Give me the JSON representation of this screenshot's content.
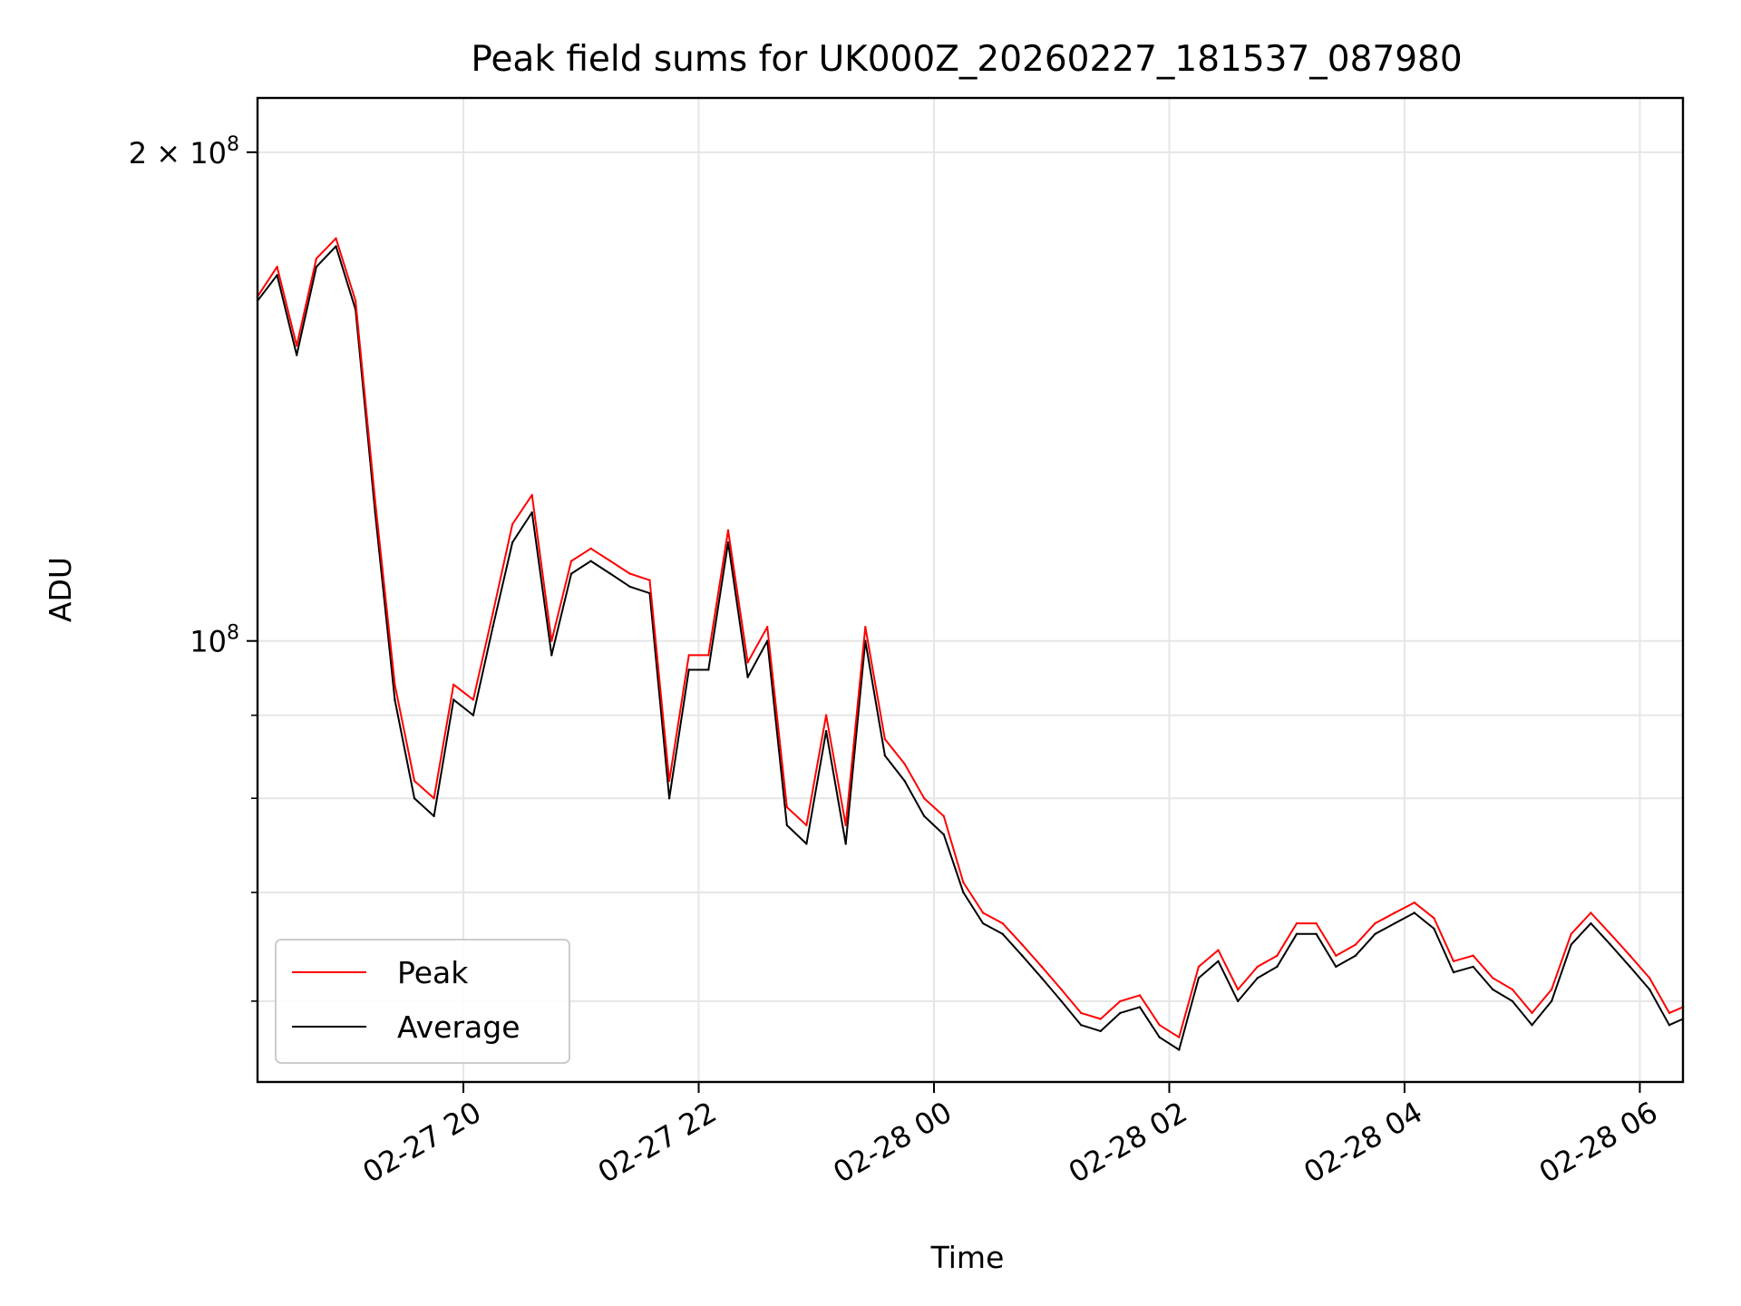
{
  "chart_data": {
    "type": "line",
    "title": "Peak field sums for UK000Z_20260227_181537_087980",
    "xlabel": "Time",
    "ylabel": "ADU",
    "yscale": "log",
    "ylim": [
      53500000,
      216000000
    ],
    "xlim": [
      "2026-02-27 18:15",
      "2026-02-28 06:22"
    ],
    "grid": true,
    "legend_position": "lower-left",
    "x_ticks": [
      {
        "t": "2026-02-27 20:00",
        "label": "02-27 20"
      },
      {
        "t": "2026-02-27 22:00",
        "label": "02-27 22"
      },
      {
        "t": "2026-02-28 00:00",
        "label": "02-28 00"
      },
      {
        "t": "2026-02-28 02:00",
        "label": "02-28 02"
      },
      {
        "t": "2026-02-28 04:00",
        "label": "02-28 04"
      },
      {
        "t": "2026-02-28 06:00",
        "label": "02-28 06"
      }
    ],
    "y_major_ticks": [
      {
        "value": 100000000,
        "base": "10",
        "exp": "8",
        "coef": ""
      },
      {
        "value": 200000000,
        "base": "10",
        "exp": "8",
        "coef": "2 × "
      }
    ],
    "y_minor_ticks": [
      60000000,
      70000000,
      80000000,
      90000000
    ],
    "series": [
      {
        "name": "Average",
        "color": "#000000",
        "points": [
          [
            "2026-02-27 18:15",
            162000000
          ],
          [
            "2026-02-27 18:25",
            168000000
          ],
          [
            "2026-02-27 18:35",
            150000000
          ],
          [
            "2026-02-27 18:45",
            170000000
          ],
          [
            "2026-02-27 18:55",
            175000000
          ],
          [
            "2026-02-27 19:05",
            160000000
          ],
          [
            "2026-02-27 19:15",
            120000000
          ],
          [
            "2026-02-27 19:25",
            92000000
          ],
          [
            "2026-02-27 19:35",
            80000000
          ],
          [
            "2026-02-27 19:45",
            78000000
          ],
          [
            "2026-02-27 19:55",
            92000000
          ],
          [
            "2026-02-27 20:05",
            90000000
          ],
          [
            "2026-02-27 20:15",
            102000000
          ],
          [
            "2026-02-27 20:25",
            115000000
          ],
          [
            "2026-02-27 20:35",
            120000000
          ],
          [
            "2026-02-27 20:45",
            98000000
          ],
          [
            "2026-02-27 20:55",
            110000000
          ],
          [
            "2026-02-27 21:05",
            112000000
          ],
          [
            "2026-02-27 21:15",
            110000000
          ],
          [
            "2026-02-27 21:25",
            108000000
          ],
          [
            "2026-02-27 21:35",
            107000000
          ],
          [
            "2026-02-27 21:45",
            80000000
          ],
          [
            "2026-02-27 21:55",
            96000000
          ],
          [
            "2026-02-27 22:05",
            96000000
          ],
          [
            "2026-02-27 22:15",
            115000000
          ],
          [
            "2026-02-27 22:25",
            95000000
          ],
          [
            "2026-02-27 22:35",
            100000000
          ],
          [
            "2026-02-27 22:45",
            77000000
          ],
          [
            "2026-02-27 22:55",
            75000000
          ],
          [
            "2026-02-27 23:05",
            88000000
          ],
          [
            "2026-02-27 23:15",
            75000000
          ],
          [
            "2026-02-27 23:25",
            100000000
          ],
          [
            "2026-02-27 23:35",
            85000000
          ],
          [
            "2026-02-27 23:45",
            82000000
          ],
          [
            "2026-02-27 23:55",
            78000000
          ],
          [
            "2026-02-28 00:05",
            76000000
          ],
          [
            "2026-02-28 00:15",
            70000000
          ],
          [
            "2026-02-28 00:25",
            67000000
          ],
          [
            "2026-02-28 00:35",
            66000000
          ],
          [
            "2026-02-28 00:45",
            64000000
          ],
          [
            "2026-02-28 00:55",
            62000000
          ],
          [
            "2026-02-28 01:05",
            60000000
          ],
          [
            "2026-02-28 01:15",
            58000000
          ],
          [
            "2026-02-28 01:25",
            57500000
          ],
          [
            "2026-02-28 01:35",
            59000000
          ],
          [
            "2026-02-28 01:45",
            59500000
          ],
          [
            "2026-02-28 01:55",
            57000000
          ],
          [
            "2026-02-28 02:05",
            56000000
          ],
          [
            "2026-02-28 02:15",
            62000000
          ],
          [
            "2026-02-28 02:25",
            63500000
          ],
          [
            "2026-02-28 02:35",
            60000000
          ],
          [
            "2026-02-28 02:45",
            62000000
          ],
          [
            "2026-02-28 02:55",
            63000000
          ],
          [
            "2026-02-28 03:05",
            66000000
          ],
          [
            "2026-02-28 03:15",
            66000000
          ],
          [
            "2026-02-28 03:25",
            63000000
          ],
          [
            "2026-02-28 03:35",
            64000000
          ],
          [
            "2026-02-28 03:45",
            66000000
          ],
          [
            "2026-02-28 03:55",
            67000000
          ],
          [
            "2026-02-28 04:05",
            68000000
          ],
          [
            "2026-02-28 04:15",
            66500000
          ],
          [
            "2026-02-28 04:25",
            62500000
          ],
          [
            "2026-02-28 04:35",
            63000000
          ],
          [
            "2026-02-28 04:45",
            61000000
          ],
          [
            "2026-02-28 04:55",
            60000000
          ],
          [
            "2026-02-28 05:05",
            58000000
          ],
          [
            "2026-02-28 05:15",
            60000000
          ],
          [
            "2026-02-28 05:25",
            65000000
          ],
          [
            "2026-02-28 05:35",
            67000000
          ],
          [
            "2026-02-28 05:45",
            65000000
          ],
          [
            "2026-02-28 05:55",
            63000000
          ],
          [
            "2026-02-28 06:05",
            61000000
          ],
          [
            "2026-02-28 06:15",
            58000000
          ],
          [
            "2026-02-28 06:22",
            58500000
          ]
        ]
      },
      {
        "name": "Peak",
        "color": "#ff0000",
        "points": [
          [
            "2026-02-27 18:15",
            163000000
          ],
          [
            "2026-02-27 18:25",
            170000000
          ],
          [
            "2026-02-27 18:35",
            152000000
          ],
          [
            "2026-02-27 18:45",
            172000000
          ],
          [
            "2026-02-27 18:55",
            177000000
          ],
          [
            "2026-02-27 19:05",
            162000000
          ],
          [
            "2026-02-27 19:15",
            122000000
          ],
          [
            "2026-02-27 19:25",
            94000000
          ],
          [
            "2026-02-27 19:35",
            82000000
          ],
          [
            "2026-02-27 19:45",
            80000000
          ],
          [
            "2026-02-27 19:55",
            94000000
          ],
          [
            "2026-02-27 20:05",
            92000000
          ],
          [
            "2026-02-27 20:15",
            104000000
          ],
          [
            "2026-02-27 20:25",
            118000000
          ],
          [
            "2026-02-27 20:35",
            123000000
          ],
          [
            "2026-02-27 20:45",
            100000000
          ],
          [
            "2026-02-27 20:55",
            112000000
          ],
          [
            "2026-02-27 21:05",
            114000000
          ],
          [
            "2026-02-27 21:15",
            112000000
          ],
          [
            "2026-02-27 21:25",
            110000000
          ],
          [
            "2026-02-27 21:35",
            109000000
          ],
          [
            "2026-02-27 21:45",
            82000000
          ],
          [
            "2026-02-27 21:55",
            98000000
          ],
          [
            "2026-02-27 22:05",
            98000000
          ],
          [
            "2026-02-27 22:15",
            117000000
          ],
          [
            "2026-02-27 22:25",
            97000000
          ],
          [
            "2026-02-27 22:35",
            102000000
          ],
          [
            "2026-02-27 22:45",
            79000000
          ],
          [
            "2026-02-27 22:55",
            77000000
          ],
          [
            "2026-02-27 23:05",
            90000000
          ],
          [
            "2026-02-27 23:15",
            77000000
          ],
          [
            "2026-02-27 23:25",
            102000000
          ],
          [
            "2026-02-27 23:35",
            87000000
          ],
          [
            "2026-02-27 23:45",
            84000000
          ],
          [
            "2026-02-27 23:55",
            80000000
          ],
          [
            "2026-02-28 00:05",
            78000000
          ],
          [
            "2026-02-28 00:15",
            71000000
          ],
          [
            "2026-02-28 00:25",
            68000000
          ],
          [
            "2026-02-28 00:35",
            67000000
          ],
          [
            "2026-02-28 00:45",
            65000000
          ],
          [
            "2026-02-28 00:55",
            63000000
          ],
          [
            "2026-02-28 01:05",
            61000000
          ],
          [
            "2026-02-28 01:15",
            59000000
          ],
          [
            "2026-02-28 01:25",
            58500000
          ],
          [
            "2026-02-28 01:35",
            60000000
          ],
          [
            "2026-02-28 01:45",
            60500000
          ],
          [
            "2026-02-28 01:55",
            58000000
          ],
          [
            "2026-02-28 02:05",
            57000000
          ],
          [
            "2026-02-28 02:15",
            63000000
          ],
          [
            "2026-02-28 02:25",
            64500000
          ],
          [
            "2026-02-28 02:35",
            61000000
          ],
          [
            "2026-02-28 02:45",
            63000000
          ],
          [
            "2026-02-28 02:55",
            64000000
          ],
          [
            "2026-02-28 03:05",
            67000000
          ],
          [
            "2026-02-28 03:15",
            67000000
          ],
          [
            "2026-02-28 03:25",
            64000000
          ],
          [
            "2026-02-28 03:35",
            65000000
          ],
          [
            "2026-02-28 03:45",
            67000000
          ],
          [
            "2026-02-28 03:55",
            68000000
          ],
          [
            "2026-02-28 04:05",
            69000000
          ],
          [
            "2026-02-28 04:15",
            67500000
          ],
          [
            "2026-02-28 04:25",
            63500000
          ],
          [
            "2026-02-28 04:35",
            64000000
          ],
          [
            "2026-02-28 04:45",
            62000000
          ],
          [
            "2026-02-28 04:55",
            61000000
          ],
          [
            "2026-02-28 05:05",
            59000000
          ],
          [
            "2026-02-28 05:15",
            61000000
          ],
          [
            "2026-02-28 05:25",
            66000000
          ],
          [
            "2026-02-28 05:35",
            68000000
          ],
          [
            "2026-02-28 05:45",
            66000000
          ],
          [
            "2026-02-28 05:55",
            64000000
          ],
          [
            "2026-02-28 06:05",
            62000000
          ],
          [
            "2026-02-28 06:15",
            59000000
          ],
          [
            "2026-02-28 06:22",
            59500000
          ]
        ]
      }
    ]
  }
}
